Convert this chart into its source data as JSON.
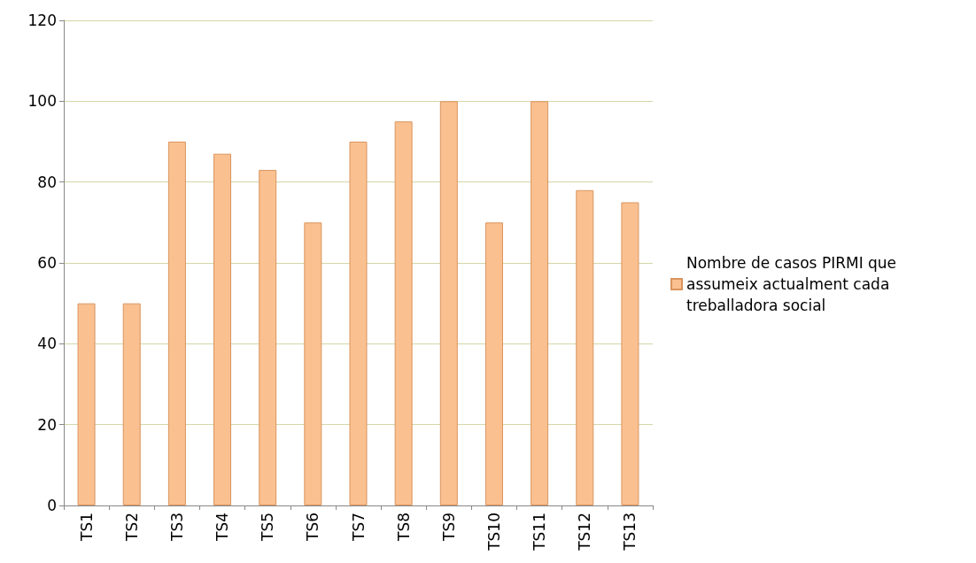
{
  "chart_data": {
    "type": "bar",
    "categories": [
      "TS1",
      "TS2",
      "TS3",
      "TS4",
      "TS5",
      "TS6",
      "TS7",
      "TS8",
      "TS9",
      "TS10",
      "TS11",
      "TS12",
      "TS13"
    ],
    "series": [
      {
        "name": "Nombre de casos PIRMI que assumeix actualment cada treballadora social",
        "color": "#fac090",
        "values": [
          50,
          50,
          90,
          87,
          83,
          70,
          90,
          95,
          100,
          70,
          100,
          78,
          75
        ]
      }
    ],
    "ylim": [
      0,
      120
    ],
    "yticks": [
      0,
      20,
      40,
      60,
      80,
      100,
      120
    ],
    "grid": "y",
    "legend": "right"
  }
}
